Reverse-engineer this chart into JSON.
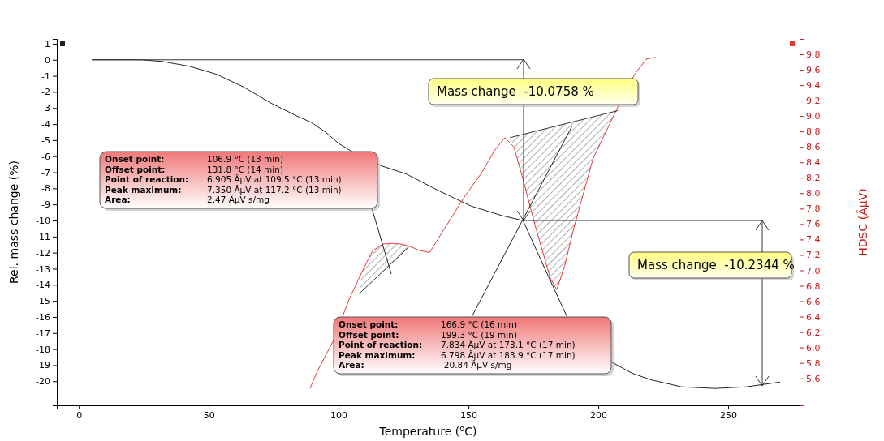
{
  "chart_data": {
    "type": "line",
    "xlabel": "Temperature ($^{o}$C)",
    "ylabel": "Rel. mass change (%)",
    "y2label": "HDSC (ÂµV)",
    "xlim": [
      -8.5,
      277.5
    ],
    "xticks": [
      0,
      50,
      100,
      150,
      200,
      250
    ],
    "ylim": [
      -21.5,
      1.3
    ],
    "yticks": [
      1,
      0,
      -1,
      -2,
      -3,
      -4,
      -5,
      -6,
      -7,
      -8,
      -9,
      -10,
      -11,
      -12,
      -13,
      -14,
      -15,
      -16,
      -17,
      -18,
      -19,
      -20
    ],
    "y2lim": [
      5.25,
      10.0
    ],
    "y2ticks": [
      {
        "value": 5.6,
        "label": "5.6"
      },
      {
        "value": 5.8,
        "label": "5.8"
      },
      {
        "value": 6.0,
        "label": "6.0"
      },
      {
        "value": 6.2,
        "label": "6.2"
      },
      {
        "value": 6.4,
        "label": "6.4"
      },
      {
        "value": 6.6,
        "label": "6.6"
      },
      {
        "value": 6.8,
        "label": "6.8"
      },
      {
        "value": 7.0,
        "label": "7.0"
      },
      {
        "value": 7.2,
        "label": "7.2"
      },
      {
        "value": 7.4,
        "label": "7.4"
      },
      {
        "value": 7.6,
        "label": "7.6"
      },
      {
        "value": 7.8,
        "label": "7.8"
      },
      {
        "value": 8.0,
        "label": "8.0"
      },
      {
        "value": 8.2,
        "label": "8.2"
      },
      {
        "value": 8.4,
        "label": "8.4"
      },
      {
        "value": 8.6,
        "label": "8.6"
      },
      {
        "value": 8.8,
        "label": "8.8"
      },
      {
        "value": 9.0,
        "label": "9.0"
      },
      {
        "value": 9.2,
        "label": "9.2"
      },
      {
        "value": 9.4,
        "label": "9.4"
      },
      {
        "value": 9.6,
        "label": "9.6"
      },
      {
        "value": 9.8,
        "label": "9.8"
      }
    ],
    "grid": false,
    "series": [
      {
        "color": "#222222",
        "x": [
          5,
          24,
          32,
          42.5,
          53,
          63.5,
          74,
          84,
          89.5,
          95,
          100,
          105,
          116.5,
          126,
          138,
          151,
          163,
          171,
          180,
          188,
          205,
          213,
          220,
          232,
          245,
          257,
          270
        ],
        "values": [
          0,
          0,
          -0.1,
          -0.4,
          -0.9,
          -1.7,
          -2.7,
          -3.5,
          -3.9,
          -4.5,
          -5.2,
          -5.7,
          -6.6,
          -7.1,
          -8.1,
          -9.1,
          -9.7,
          -10.0,
          -13.2,
          -16.0,
          -18.8,
          -19.5,
          -19.9,
          -20.35,
          -20.45,
          -20.35,
          -20.05
        ]
      },
      {
        "axis": "y2",
        "color": "#e03a3a",
        "x": [
          89,
          91.5,
          98,
          104,
          109,
          113,
          117,
          120.6,
          124,
          127.5,
          131,
          135,
          140,
          149,
          155,
          160,
          164,
          167.5,
          171,
          175.6,
          181.5,
          184,
          187,
          190.6,
          198,
          207,
          214,
          218.5,
          222
        ],
        "values": [
          5.47,
          5.67,
          6.09,
          6.62,
          6.98,
          7.25,
          7.34,
          7.35,
          7.34,
          7.31,
          7.26,
          7.23,
          7.5,
          7.98,
          8.26,
          8.55,
          8.72,
          8.6,
          8.18,
          7.59,
          6.9,
          6.75,
          7.05,
          7.55,
          8.45,
          9.08,
          9.54,
          9.74,
          9.76
        ]
      },
      {
        "axis": "y2",
        "color": "#333333",
        "x": [
          108,
          127
        ],
        "values": [
          6.7,
          7.3
        ]
      },
      {
        "axis": "y2",
        "color": "#333333",
        "x": [
          166,
          207.5
        ],
        "values": [
          8.72,
          9.07
        ]
      },
      {
        "color": "#333333",
        "x": [
          5,
          171
        ],
        "values": [
          0,
          0
        ]
      },
      {
        "color": "#333333",
        "x": [
          171,
          263
        ],
        "values": [
          -10.0,
          -10.0
        ]
      },
      {
        "color": "#222222",
        "x": [
          112.8,
          120.3
        ],
        "values": [
          -9.24,
          -13.33
        ]
      }
    ],
    "annotations": [
      "Mass change  -10.0758 %",
      "Mass change  -10.2344 %",
      "Onset point: 106.9 °C (13 min)",
      "Offset point: 131.8 °C (14 min)",
      "Point of reaction: 6.905 ÂµV at 109.5 °C (13 min)",
      "Peak maximum: 7.350 ÂµV at 117.2 °C (13 min)",
      "Area: 2.47 ÂµV s/mg",
      "Onset point: 166.9 °C (16 min)",
      "Offset point: 199.3 °C (19 min)",
      "Point of reaction: 7.834 ÂµV at 173.1 °C (17 min)",
      "Peak maximum: 6.798 ÂµV at 183.9 °C (17 min)",
      "Area: -20.84 ÂµV s/mg"
    ]
  }
}
